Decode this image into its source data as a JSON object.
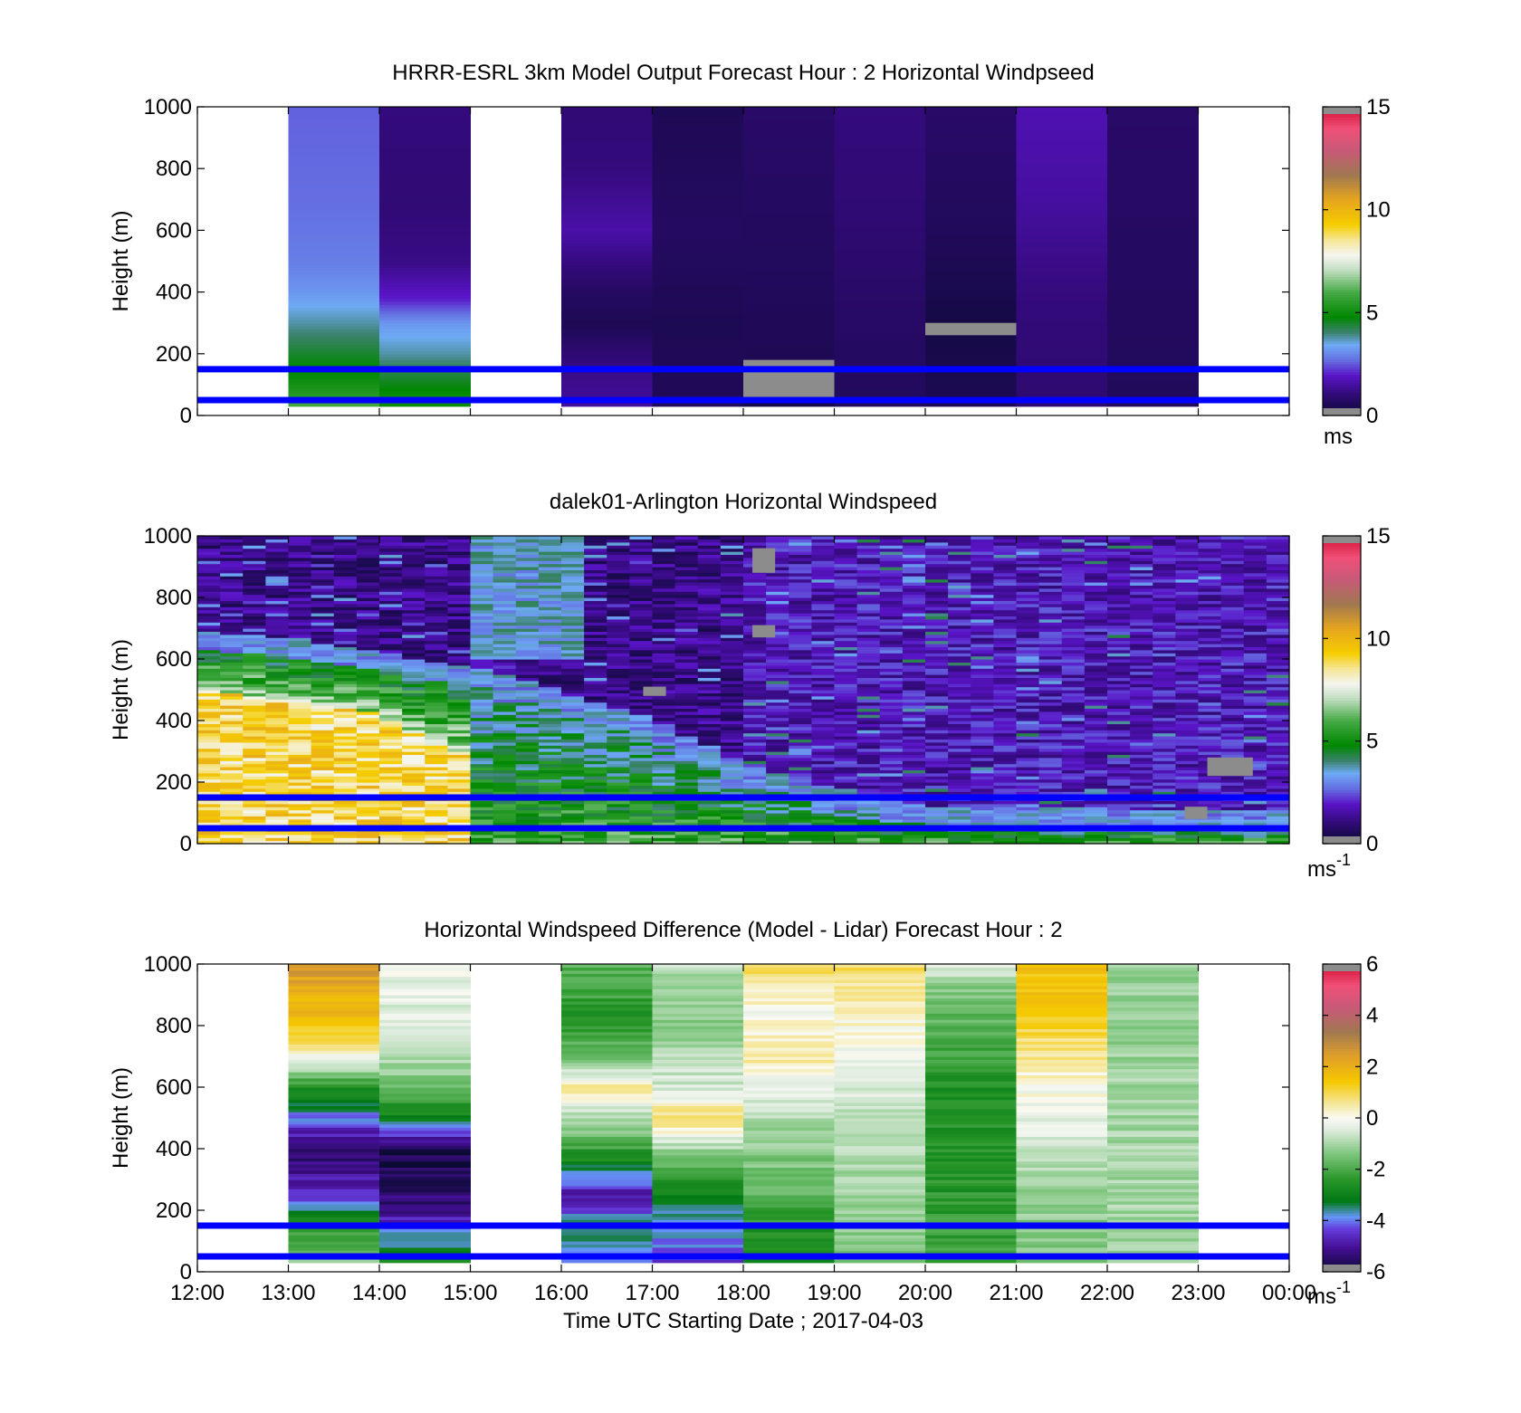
{
  "figure": {
    "x_axis": {
      "tick_labels": [
        "12:00",
        "13:00",
        "14:00",
        "15:00",
        "16:00",
        "17:00",
        "18:00",
        "19:00",
        "20:00",
        "21:00",
        "22:00",
        "23:00",
        "00:00"
      ],
      "label": "Time UTC  Starting Date ; 2017-04-03",
      "range_hours": [
        12,
        24
      ]
    },
    "y_axis": {
      "label": "Height (m)",
      "tick_labels": [
        "0",
        "200",
        "400",
        "600",
        "800",
        "1000"
      ],
      "range": [
        0,
        1000
      ]
    },
    "reference_lines_m": [
      50,
      150
    ],
    "colors": {
      "reference_line": "#0000ff",
      "missing": "#8c8c8c"
    }
  },
  "chart_data": [
    {
      "type": "heatmap",
      "title": "HRRR-ESRL 3km Model Output   Forecast Hour : 2 Horizontal Windpseed",
      "ylabel": "Height (m)",
      "xlim_hours": [
        12,
        24
      ],
      "ylim": [
        0,
        1000
      ],
      "colorbar": {
        "min": 0,
        "max": 15,
        "ticks": [
          "0",
          "5",
          "10",
          "15"
        ],
        "unit_label": "ms",
        "unit_sup": ""
      },
      "columns": [
        {
          "start_hour": 13,
          "profile_m": [
            [
              0,
              6.5
            ],
            [
              60,
              5.5
            ],
            [
              120,
              5
            ],
            [
              200,
              4.5
            ],
            [
              300,
              3.8
            ],
            [
              400,
              3.2
            ],
            [
              500,
              2.9
            ],
            [
              700,
              2.7
            ],
            [
              1000,
              2.6
            ]
          ]
        },
        {
          "start_hour": 14,
          "profile_m": [
            [
              0,
              3.5
            ],
            [
              40,
              5.2
            ],
            [
              120,
              4.5
            ],
            [
              200,
              3.8
            ],
            [
              300,
              3.2
            ],
            [
              380,
              2
            ],
            [
              500,
              1.2
            ],
            [
              700,
              1
            ],
            [
              1000,
              1.1
            ]
          ]
        },
        {
          "start_hour": 16,
          "profile_m": [
            [
              0,
              1.5
            ],
            [
              150,
              1.2
            ],
            [
              300,
              0.5
            ],
            [
              400,
              0.7
            ],
            [
              600,
              1.6
            ],
            [
              800,
              1.1
            ],
            [
              1000,
              1.0
            ]
          ]
        },
        {
          "start_hour": 17,
          "profile_m": [
            [
              0,
              0.6
            ],
            [
              300,
              0.5
            ],
            [
              600,
              0.7
            ],
            [
              1000,
              0.5
            ]
          ]
        },
        {
          "start_hour": 18,
          "profile_m": [
            [
              0,
              0.3
            ],
            [
              150,
              0.5
            ],
            [
              400,
              0.6
            ],
            [
              700,
              0.7
            ],
            [
              1000,
              0.8
            ]
          ]
        },
        {
          "start_hour": 19,
          "profile_m": [
            [
              0,
              0.6
            ],
            [
              400,
              0.8
            ],
            [
              700,
              1.0
            ],
            [
              1000,
              1.1
            ]
          ]
        },
        {
          "start_hour": 20,
          "profile_m": [
            [
              0,
              0.5
            ],
            [
              300,
              0.3
            ],
            [
              600,
              0.6
            ],
            [
              1000,
              0.8
            ]
          ]
        },
        {
          "start_hour": 21,
          "profile_m": [
            [
              0,
              0.9
            ],
            [
              400,
              1.1
            ],
            [
              700,
              1.5
            ],
            [
              1000,
              1.7
            ]
          ]
        },
        {
          "start_hour": 22,
          "profile_m": [
            [
              0,
              0.6
            ],
            [
              500,
              0.7
            ],
            [
              1000,
              0.8
            ]
          ]
        }
      ],
      "missing_segments": [
        {
          "start_hour": 18,
          "hours": 1,
          "bottom_m": 60,
          "top_m": 180
        },
        {
          "start_hour": 20,
          "hours": 1,
          "bottom_m": 260,
          "top_m": 300
        }
      ]
    },
    {
      "type": "heatmap",
      "title": "dalek01-Arlington  Horizontal Windspeed",
      "ylabel": "Height (m)",
      "xlim_hours": [
        12,
        24
      ],
      "ylim": [
        0,
        1000
      ],
      "colorbar": {
        "min": 0,
        "max": 15,
        "ticks": [
          "0",
          "5",
          "10",
          "15"
        ],
        "unit_label": "ms",
        "unit_sup": "-1"
      },
      "data_hours": [
        12.0,
        23.87
      ],
      "column_step_hours": 0.25,
      "layers": [
        {
          "hours": [
            12.0,
            13.0,
            14.0,
            14.75
          ],
          "top_m": [
            630,
            600,
            560,
            520
          ],
          "core_top_m": [
            500,
            460,
            420,
            300
          ],
          "core_value": 9.0,
          "layer_value": 6.0
        },
        {
          "hours": [
            15.0,
            16.0,
            17.0,
            18.0,
            19.0,
            20.0,
            23.9
          ],
          "top_m": [
            520,
            430,
            340,
            200,
            120,
            60,
            40
          ],
          "core_top_m": [
            0,
            0,
            0,
            0,
            0,
            0,
            0
          ],
          "core_value": 6.0,
          "layer_value": 5.0
        }
      ],
      "aloft_value": {
        "early": 1.2,
        "late": 1.8
      },
      "aloft_plume": {
        "hours": [
          15.0,
          16.2
        ],
        "bottom_m": 600,
        "top_m": 1000,
        "value": 3.5
      },
      "missing_segments": [
        {
          "start_hour": 18.1,
          "hours": 0.25,
          "bottom_m": 880,
          "top_m": 960
        },
        {
          "start_hour": 18.1,
          "hours": 0.25,
          "bottom_m": 670,
          "top_m": 710
        },
        {
          "start_hour": 16.9,
          "hours": 0.25,
          "bottom_m": 480,
          "top_m": 510
        },
        {
          "start_hour": 23.1,
          "hours": 0.5,
          "bottom_m": 220,
          "top_m": 280
        },
        {
          "start_hour": 22.85,
          "hours": 0.25,
          "bottom_m": 80,
          "top_m": 120
        }
      ]
    },
    {
      "type": "heatmap",
      "title": "Horizontal Windspeed Difference (Model - Lidar) Forecast Hour : 2",
      "ylabel": "Height (m)",
      "xlabel": "Time UTC  Starting Date ; 2017-04-03",
      "xlim_hours": [
        12,
        24
      ],
      "ylim": [
        0,
        1000
      ],
      "colorbar": {
        "min": -6,
        "max": 6,
        "ticks": [
          "-6",
          "-4",
          "-2",
          "0",
          "2",
          "4",
          "6"
        ],
        "unit_label": "ms",
        "unit_sup": "-1"
      },
      "columns": [
        {
          "start_hour": 13,
          "profile_m": [
            [
              0,
              -1
            ],
            [
              150,
              -2.5
            ],
            [
              250,
              -4.5
            ],
            [
              400,
              -5.5
            ],
            [
              500,
              -4
            ],
            [
              600,
              -2.5
            ],
            [
              700,
              0
            ],
            [
              800,
              1.5
            ],
            [
              1000,
              2.5
            ]
          ]
        },
        {
          "start_hour": 14,
          "profile_m": [
            [
              0,
              -2.5
            ],
            [
              100,
              -3.5
            ],
            [
              200,
              -5.2
            ],
            [
              400,
              -5.8
            ],
            [
              500,
              -3
            ],
            [
              600,
              -1.5
            ],
            [
              750,
              -0.5
            ],
            [
              1000,
              -0.2
            ]
          ]
        },
        {
          "start_hour": 16,
          "profile_m": [
            [
              0,
              -4
            ],
            [
              150,
              -3.5
            ],
            [
              250,
              -5
            ],
            [
              350,
              -3
            ],
            [
              450,
              -1.5
            ],
            [
              600,
              0.5
            ],
            [
              700,
              -1.5
            ],
            [
              800,
              -2.5
            ],
            [
              1000,
              -1.8
            ]
          ]
        },
        {
          "start_hour": 17,
          "profile_m": [
            [
              0,
              -4.5
            ],
            [
              200,
              -3.5
            ],
            [
              300,
              -2.5
            ],
            [
              400,
              -1
            ],
            [
              500,
              1
            ],
            [
              600,
              -0.5
            ],
            [
              800,
              -1.2
            ],
            [
              1000,
              -0.8
            ]
          ]
        },
        {
          "start_hour": 18,
          "profile_m": [
            [
              0,
              -3
            ],
            [
              150,
              -2.5
            ],
            [
              300,
              -1.5
            ],
            [
              500,
              -1
            ],
            [
              700,
              0.5
            ],
            [
              850,
              0
            ],
            [
              1000,
              1
            ]
          ]
        },
        {
          "start_hour": 19,
          "profile_m": [
            [
              0,
              -1.5
            ],
            [
              300,
              -1
            ],
            [
              600,
              -0.5
            ],
            [
              900,
              0.5
            ],
            [
              1000,
              1
            ]
          ]
        },
        {
          "start_hour": 20,
          "profile_m": [
            [
              0,
              -2
            ],
            [
              300,
              -2.5
            ],
            [
              600,
              -2.5
            ],
            [
              900,
              -1.5
            ],
            [
              1000,
              -0.5
            ]
          ]
        },
        {
          "start_hour": 21,
          "profile_m": [
            [
              0,
              -1.5
            ],
            [
              300,
              -1
            ],
            [
              500,
              -0.3
            ],
            [
              700,
              0.5
            ],
            [
              850,
              1.5
            ],
            [
              1000,
              1.5
            ]
          ]
        },
        {
          "start_hour": 22,
          "profile_m": [
            [
              0,
              -1
            ],
            [
              500,
              -1
            ],
            [
              1000,
              -1.2
            ]
          ]
        }
      ]
    }
  ]
}
